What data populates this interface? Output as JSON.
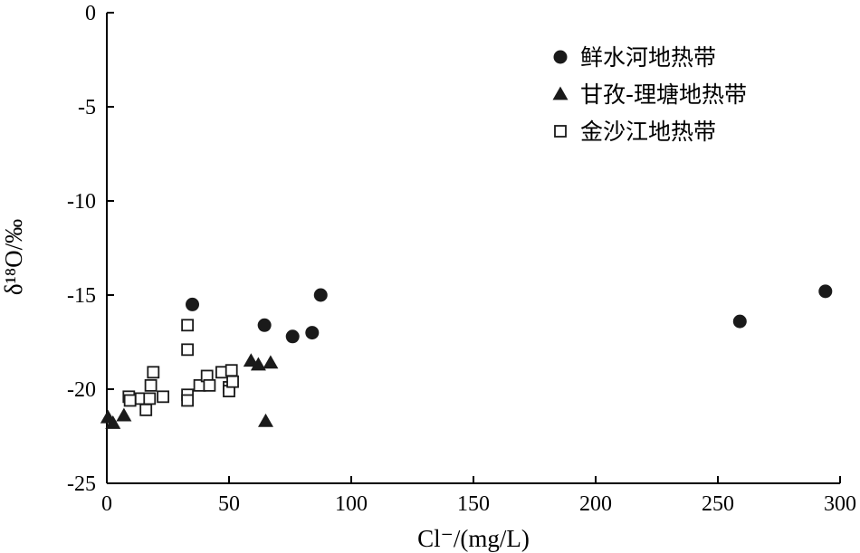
{
  "chart_data": {
    "type": "scatter",
    "xlabel": "Cl⁻/(mg/L)",
    "ylabel": "δ¹⁸O/‰",
    "xlim": [
      0,
      300
    ],
    "ylim": [
      -25,
      0
    ],
    "xticks": [
      0,
      50,
      100,
      150,
      200,
      250,
      300
    ],
    "yticks": [
      0,
      -5,
      -10,
      -15,
      -20,
      -25
    ],
    "grid": false,
    "legend_position": "top-right",
    "series": [
      {
        "name": "鲜水河地热带",
        "marker": "filled-circle",
        "color": "#1a1a1a",
        "points": [
          {
            "x": 35,
            "y": -15.5
          },
          {
            "x": 64.5,
            "y": -16.6
          },
          {
            "x": 76,
            "y": -17.2
          },
          {
            "x": 84,
            "y": -17.0
          },
          {
            "x": 87.5,
            "y": -15.0
          },
          {
            "x": 259,
            "y": -16.4
          },
          {
            "x": 294,
            "y": -14.8
          }
        ]
      },
      {
        "name": "甘孜-理塘地热带",
        "marker": "filled-triangle",
        "color": "#1a1a1a",
        "points": [
          {
            "x": 0.5,
            "y": -21.5
          },
          {
            "x": 2.5,
            "y": -21.8
          },
          {
            "x": 7,
            "y": -21.4
          },
          {
            "x": 59,
            "y": -18.5
          },
          {
            "x": 62,
            "y": -18.7
          },
          {
            "x": 67,
            "y": -18.6
          },
          {
            "x": 65,
            "y": -21.7
          }
        ]
      },
      {
        "name": "金沙江地热带",
        "marker": "open-square",
        "color": "#1a1a1a",
        "points": [
          {
            "x": 9,
            "y": -20.4
          },
          {
            "x": 9.5,
            "y": -20.6
          },
          {
            "x": 14,
            "y": -20.5
          },
          {
            "x": 16,
            "y": -21.1
          },
          {
            "x": 17.5,
            "y": -20.5
          },
          {
            "x": 18,
            "y": -19.8
          },
          {
            "x": 19,
            "y": -19.1
          },
          {
            "x": 23,
            "y": -20.4
          },
          {
            "x": 33,
            "y": -16.6
          },
          {
            "x": 33,
            "y": -17.9
          },
          {
            "x": 33,
            "y": -20.3
          },
          {
            "x": 33,
            "y": -20.6
          },
          {
            "x": 38,
            "y": -19.8
          },
          {
            "x": 41,
            "y": -19.3
          },
          {
            "x": 42,
            "y": -19.8
          },
          {
            "x": 47,
            "y": -19.1
          },
          {
            "x": 50,
            "y": -19.9
          },
          {
            "x": 50,
            "y": -20.1
          },
          {
            "x": 51,
            "y": -19.0
          },
          {
            "x": 51.5,
            "y": -19.6
          }
        ]
      }
    ]
  }
}
